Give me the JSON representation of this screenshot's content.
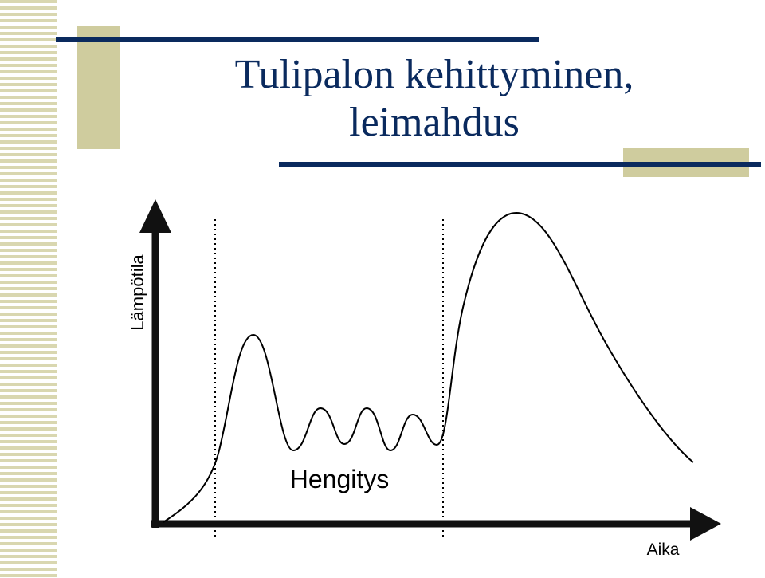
{
  "title": {
    "lines": [
      "Tulipalon kehittyminen,",
      "leimahdus"
    ]
  },
  "diagram": {
    "y_axis_label": "Lämpötila",
    "x_axis_label": "Aika",
    "annotation": "Hengitys"
  }
}
